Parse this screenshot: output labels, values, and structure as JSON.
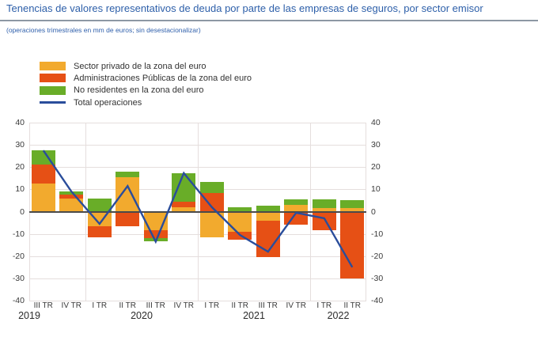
{
  "header": {
    "title": "Tenencias de valores representativos de deuda por parte de las empresas de seguros, por sector emisor",
    "subtitle": "(operaciones trimestrales en mm de euros; sin desestacionalizar)"
  },
  "colors": {
    "title_blue": "#2D5FA9",
    "private_yellow": "#F2AA2E",
    "aapp_orange": "#E65015",
    "nonresident_green": "#69AD28",
    "total_line_blue": "#2A4D9B",
    "grid": "#E5DEDD",
    "zero_axis": "#4A4A4A",
    "axis_text": "#3A3A3A",
    "divider_gray": "#8D98A4"
  },
  "legend": {
    "items": [
      {
        "key": "privado",
        "label": "Sector privado de la zona del euro",
        "marker": "box",
        "color_key": "private_yellow"
      },
      {
        "key": "aapp",
        "label": "Administraciones Públicas de la zona del euro",
        "marker": "box",
        "color_key": "aapp_orange"
      },
      {
        "key": "no-residentes",
        "label": "No residentes en la zona del euro",
        "marker": "box",
        "color_key": "nonresident_green"
      },
      {
        "key": "total",
        "label": "Total operaciones",
        "marker": "line",
        "color_key": "total_line_blue"
      }
    ]
  },
  "chart_data": {
    "type": "bar",
    "subtype": "stacked-bars-with-total-line",
    "title": "Tenencias de valores representativos de deuda por parte de las empresas de seguros, por sector emisor",
    "unit": "mm de euros",
    "categories": [
      "III TR",
      "IV TR",
      "I TR",
      "II TR",
      "III TR",
      "IV TR",
      "I TR",
      "II TR",
      "III TR",
      "IV TR",
      "I TR",
      "II TR"
    ],
    "year_groups": [
      {
        "label": "2019",
        "start": 0,
        "count": 2
      },
      {
        "label": "2020",
        "start": 2,
        "count": 4
      },
      {
        "label": "2021",
        "start": 6,
        "count": 4
      },
      {
        "label": "2022",
        "start": 10,
        "count": 2
      }
    ],
    "series": [
      {
        "key": "privado",
        "name": "Sector privado de la zona del euro",
        "render": "bar",
        "color_key": "private_yellow",
        "values": [
          12.5,
          6,
          -6.5,
          15.5,
          -8.5,
          2,
          -11.5,
          -9,
          -4,
          3,
          1.5,
          1.5
        ]
      },
      {
        "key": "aapp",
        "name": "Administraciones Públicas de la zona del euro",
        "render": "bar",
        "color_key": "aapp_orange",
        "values": [
          8.5,
          1.5,
          -5,
          -6.5,
          -3.5,
          2.3,
          8.5,
          -3.5,
          -16.5,
          -6,
          -8.5,
          -30
        ]
      },
      {
        "key": "no-residentes",
        "name": "No residentes en la zona del euro",
        "render": "bar",
        "color_key": "nonresident_green",
        "values": [
          6.5,
          1.5,
          6,
          2.5,
          -1.5,
          13,
          5,
          2,
          2.5,
          2.5,
          4,
          3.5
        ]
      },
      {
        "key": "total",
        "name": "Total operaciones",
        "render": "line",
        "color_key": "total_line_blue",
        "values": [
          27.5,
          9,
          -5.5,
          11.5,
          -13.5,
          17.3,
          2,
          -10.5,
          -18,
          -0.5,
          -3,
          -25
        ]
      }
    ],
    "ylim": [
      -40,
      40
    ],
    "yticks": [
      40,
      30,
      20,
      10,
      0,
      -10,
      -20,
      -30,
      -40
    ],
    "y_axis_sides": [
      "left",
      "right"
    ],
    "grid": true,
    "legend_position": "top-left"
  }
}
